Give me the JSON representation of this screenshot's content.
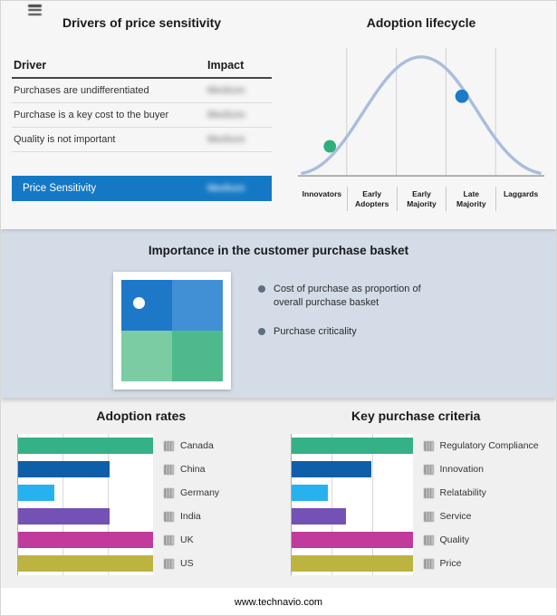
{
  "page": {
    "footer": "www.technavio.com",
    "band_background": "#d4dde7",
    "accent_blue": "#1478c5"
  },
  "drivers_panel": {
    "title": "Drivers of price sensitivity",
    "columns": {
      "driver": "Driver",
      "impact": "Impact"
    },
    "rows": [
      {
        "driver": "Purchases are undifferentiated",
        "impact": "Medium"
      },
      {
        "driver": "Purchase is a key cost to the buyer",
        "impact": "Medium"
      },
      {
        "driver": "Quality is not important",
        "impact": "Medium"
      }
    ],
    "summary_row": {
      "label": "Price Sensitivity",
      "impact": "Medium"
    }
  },
  "lifecycle_panel": {
    "title": "Adoption lifecycle",
    "stages": [
      "Innovators",
      "Early Adopters",
      "Early Majority",
      "Late Majority",
      "Laggards"
    ],
    "curve_color": "#a9bedd",
    "markers": [
      {
        "name": "early-stage-marker",
        "color": "#2fae79",
        "stage": "Innovators"
      },
      {
        "name": "late-stage-marker",
        "color": "#1b7ac9",
        "stage": "Late Majority"
      }
    ]
  },
  "basket_panel": {
    "title": "Importance in the customer purchase basket",
    "bullets": [
      "Cost of purchase as proportion of overall purchase basket",
      "Purchase criticality"
    ],
    "matrix_colors": [
      "#1d78c8",
      "#4190d6",
      "#7bcba3",
      "#4eba8b"
    ],
    "dot_color": "#ffffff"
  },
  "chart_data": [
    {
      "type": "bar",
      "orientation": "horizontal",
      "title": "Adoption rates",
      "categories": [
        "Canada",
        "China",
        "Germany",
        "India",
        "UK",
        "US"
      ],
      "values": [
        100,
        68,
        27,
        68,
        100,
        100
      ],
      "xlim": [
        0,
        100
      ],
      "grid": true,
      "legend_position": "right",
      "colors": [
        "#35b187",
        "#0f5fa8",
        "#27b1ee",
        "#7451b5",
        "#c03b9c",
        "#bcb441"
      ]
    },
    {
      "type": "bar",
      "orientation": "horizontal",
      "title": "Key purchase criteria",
      "categories": [
        "Regulatory Compliance",
        "Innovation",
        "Relatability",
        "Service",
        "Quality",
        "Price"
      ],
      "values": [
        100,
        66,
        30,
        45,
        100,
        100
      ],
      "xlim": [
        0,
        100
      ],
      "grid": true,
      "legend_position": "right",
      "colors": [
        "#35b187",
        "#0f5fa8",
        "#27b1ee",
        "#7451b5",
        "#c03b9c",
        "#bcb441"
      ]
    }
  ]
}
